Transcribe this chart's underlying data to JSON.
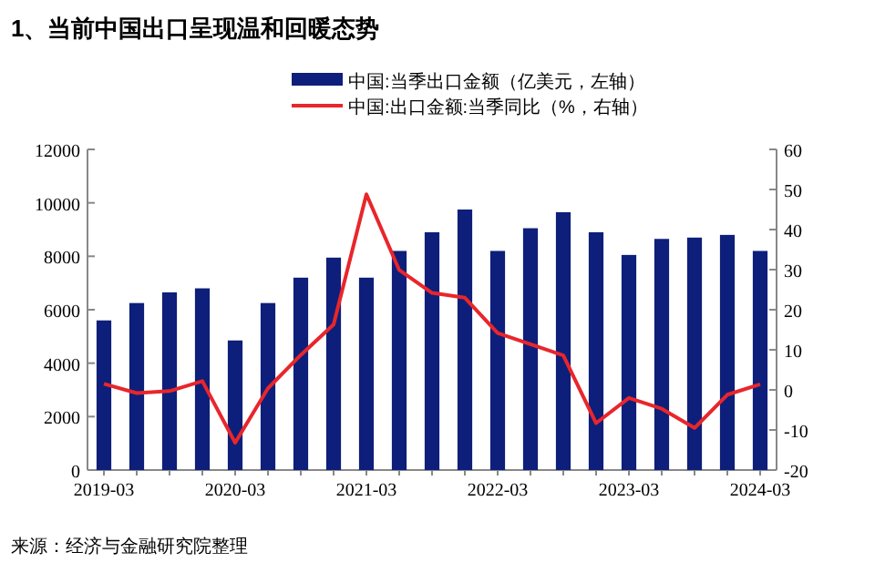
{
  "chart_data": {
    "type": "bar",
    "title": "1、当前中国出口呈现温和回暖态势",
    "categories": [
      "2019-03",
      null,
      null,
      null,
      "2020-03",
      null,
      null,
      null,
      "2021-03",
      null,
      null,
      null,
      "2022-03",
      null,
      null,
      null,
      "2023-03",
      null,
      null,
      null,
      "2024-03"
    ],
    "series": [
      {
        "name": "中国:当季出口金额（亿美元，左轴）",
        "color": "#0d1f7a",
        "values": [
          5600,
          6250,
          6650,
          6800,
          4850,
          6250,
          7200,
          7950,
          7200,
          8200,
          8900,
          9750,
          8200,
          9050,
          9650,
          8900,
          8050,
          8650,
          8700,
          8800,
          8200
        ]
      },
      {
        "name": "中国:出口金额:当季同比（%，右轴）",
        "type": "line",
        "axis": "y2",
        "color": "#e8262b",
        "values": [
          1.5,
          -0.8,
          -0.3,
          2.2,
          -13.2,
          0.4,
          8.7,
          16.3,
          48.8,
          29.9,
          24.2,
          23,
          14.2,
          11.4,
          8.6,
          -8.3,
          -2,
          -4.7,
          -9.5,
          -1.2,
          1.4
        ]
      }
    ],
    "ylim": [
      0,
      12000
    ],
    "yticks": [
      0,
      2000,
      4000,
      6000,
      8000,
      10000,
      12000
    ],
    "y2lim": [
      -20,
      60
    ],
    "y2ticks": [
      -20,
      -10,
      0,
      10,
      20,
      30,
      40,
      50,
      60
    ],
    "legend": "top",
    "grid": false,
    "annotations": [
      "来源：经济与金融研究院整理"
    ]
  }
}
